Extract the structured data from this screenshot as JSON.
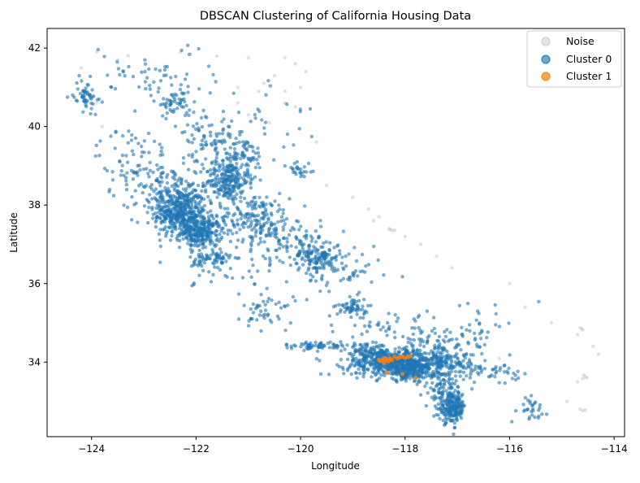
{
  "chart_data": {
    "type": "scatter",
    "title": "DBSCAN Clustering of California Housing Data",
    "xlabel": "Longitude",
    "ylabel": "Latitude",
    "xlim": [
      -124.85,
      -113.8
    ],
    "ylim": [
      32.1,
      42.5
    ],
    "xticks": [
      -124,
      -122,
      -120,
      -118,
      -116,
      -114
    ],
    "yticks": [
      34,
      36,
      38,
      40,
      42
    ],
    "xtick_labels": [
      "−124",
      "−122",
      "−120",
      "−118",
      "−116",
      "−114"
    ],
    "ytick_labels": [
      "34",
      "36",
      "38",
      "40",
      "42"
    ],
    "grid": false,
    "legend_position": "top-right",
    "series": [
      {
        "name": "Noise",
        "color": "#c8c8c8",
        "points": [
          [
            -122.3,
            41.9
          ],
          [
            -122.1,
            41.85
          ],
          [
            -121.6,
            41.8
          ],
          [
            -121.0,
            41.75
          ],
          [
            -120.3,
            41.75
          ],
          [
            -120.1,
            41.6
          ],
          [
            -119.9,
            41.4
          ],
          [
            -120.5,
            41.3
          ],
          [
            -120.7,
            41.1
          ],
          [
            -120.3,
            40.9
          ],
          [
            -120.1,
            40.5
          ],
          [
            -121.2,
            41.0
          ],
          [
            -123.3,
            41.8
          ],
          [
            -123.5,
            41.7
          ],
          [
            -123.9,
            41.9
          ],
          [
            -123.8,
            40.0
          ],
          [
            -120.6,
            40.1
          ],
          [
            -120.3,
            40.6
          ],
          [
            -121.2,
            40.6
          ],
          [
            -120.8,
            40.9
          ],
          [
            -120.0,
            41.0
          ],
          [
            -119.5,
            38.5
          ],
          [
            -119.0,
            38.2
          ],
          [
            -118.7,
            37.9
          ],
          [
            -118.5,
            37.7
          ],
          [
            -118.3,
            37.4
          ],
          [
            -118.25,
            37.35
          ],
          [
            -118.2,
            37.36
          ],
          [
            -118.3,
            37.38
          ],
          [
            -118.0,
            37.2
          ],
          [
            -117.7,
            37.0
          ],
          [
            -117.4,
            36.7
          ],
          [
            -117.1,
            36.4
          ],
          [
            -116.0,
            36.0
          ],
          [
            -115.7,
            35.4
          ],
          [
            -115.2,
            35.0
          ],
          [
            -114.65,
            34.87
          ],
          [
            -114.6,
            34.82
          ],
          [
            -114.62,
            34.85
          ],
          [
            -114.7,
            34.7
          ],
          [
            -114.55,
            33.62
          ],
          [
            -114.6,
            33.58
          ],
          [
            -114.52,
            33.6
          ],
          [
            -114.58,
            33.67
          ],
          [
            -114.7,
            33.5
          ],
          [
            -114.4,
            34.4
          ],
          [
            -114.3,
            34.2
          ],
          [
            -114.6,
            32.76
          ],
          [
            -114.65,
            32.8
          ],
          [
            -114.55,
            32.78
          ],
          [
            -114.9,
            33.0
          ],
          [
            -116.2,
            34.1
          ],
          [
            -121.0,
            40.3
          ],
          [
            -119.7,
            39.6
          ],
          [
            -123.9,
            40.6
          ],
          [
            -124.2,
            41.5
          ],
          [
            -118.6,
            37.6
          ]
        ]
      },
      {
        "name": "Cluster 0",
        "color": "#1f77b4",
        "points": []
      },
      {
        "name": "Cluster 1",
        "color": "#ff7f0e",
        "points": [
          [
            -118.4,
            34.05
          ],
          [
            -118.35,
            34.07
          ],
          [
            -118.3,
            34.06
          ],
          [
            -118.28,
            34.09
          ],
          [
            -118.45,
            34.04
          ],
          [
            -118.38,
            34.1
          ],
          [
            -118.32,
            34.02
          ],
          [
            -118.42,
            34.08
          ],
          [
            -118.25,
            34.05
          ],
          [
            -118.5,
            34.06
          ],
          [
            -118.1,
            34.12
          ],
          [
            -118.05,
            34.14
          ],
          [
            -117.95,
            34.13
          ],
          [
            -118.0,
            34.11
          ],
          [
            -118.15,
            34.1
          ],
          [
            -118.35,
            33.73
          ],
          [
            -118.05,
            33.7
          ],
          [
            -117.8,
            33.6
          ],
          [
            -118.4,
            33.98
          ],
          [
            -118.2,
            34.14
          ],
          [
            -117.9,
            34.15
          ],
          [
            -118.48,
            34.03
          ],
          [
            -118.36,
            34.04
          ]
        ]
      }
    ],
    "cluster0_regions": [
      {
        "lon": -122.3,
        "lat": 37.8,
        "sx": 0.25,
        "sy": 0.3,
        "n": 380
      },
      {
        "lon": -121.9,
        "lat": 37.3,
        "sx": 0.2,
        "sy": 0.2,
        "n": 240
      },
      {
        "lon": -122.5,
        "lat": 38.3,
        "sx": 0.35,
        "sy": 0.35,
        "n": 140
      },
      {
        "lon": -121.4,
        "lat": 38.6,
        "sx": 0.2,
        "sy": 0.25,
        "n": 200
      },
      {
        "lon": -121.2,
        "lat": 39.2,
        "sx": 0.3,
        "sy": 0.3,
        "n": 110
      },
      {
        "lon": -120.9,
        "lat": 37.7,
        "sx": 0.35,
        "sy": 0.3,
        "n": 160
      },
      {
        "lon": -120.3,
        "lat": 37.2,
        "sx": 0.35,
        "sy": 0.3,
        "n": 90
      },
      {
        "lon": -119.7,
        "lat": 36.7,
        "sx": 0.25,
        "sy": 0.2,
        "n": 150
      },
      {
        "lon": -119.0,
        "lat": 35.4,
        "sx": 0.15,
        "sy": 0.12,
        "n": 60
      },
      {
        "lon": -119.2,
        "lat": 36.2,
        "sx": 0.4,
        "sy": 0.3,
        "n": 50
      },
      {
        "lon": -122.4,
        "lat": 40.6,
        "sx": 0.15,
        "sy": 0.15,
        "n": 45
      },
      {
        "lon": -121.8,
        "lat": 39.8,
        "sx": 0.25,
        "sy": 0.35,
        "n": 70
      },
      {
        "lon": -124.1,
        "lat": 40.8,
        "sx": 0.12,
        "sy": 0.2,
        "n": 55
      },
      {
        "lon": -123.2,
        "lat": 39.1,
        "sx": 0.35,
        "sy": 0.45,
        "n": 80
      },
      {
        "lon": -120.0,
        "lat": 38.9,
        "sx": 0.15,
        "sy": 0.15,
        "n": 25
      },
      {
        "lon": -121.7,
        "lat": 36.6,
        "sx": 0.2,
        "sy": 0.15,
        "n": 70
      },
      {
        "lon": -120.6,
        "lat": 35.3,
        "sx": 0.25,
        "sy": 0.25,
        "n": 45
      },
      {
        "lon": -119.7,
        "lat": 34.42,
        "sx": 0.3,
        "sy": 0.05,
        "n": 60
      },
      {
        "lon": -118.25,
        "lat": 34.0,
        "sx": 0.45,
        "sy": 0.18,
        "n": 500
      },
      {
        "lon": -117.9,
        "lat": 33.8,
        "sx": 0.25,
        "sy": 0.15,
        "n": 200
      },
      {
        "lon": -117.3,
        "lat": 34.0,
        "sx": 0.35,
        "sy": 0.2,
        "n": 180
      },
      {
        "lon": -118.7,
        "lat": 34.25,
        "sx": 0.2,
        "sy": 0.1,
        "n": 70
      },
      {
        "lon": -117.1,
        "lat": 32.85,
        "sx": 0.13,
        "sy": 0.2,
        "n": 220
      },
      {
        "lon": -117.3,
        "lat": 33.35,
        "sx": 0.12,
        "sy": 0.2,
        "n": 55
      },
      {
        "lon": -116.4,
        "lat": 33.75,
        "sx": 0.3,
        "sy": 0.12,
        "n": 50
      },
      {
        "lon": -117.3,
        "lat": 34.6,
        "sx": 0.5,
        "sy": 0.2,
        "n": 60
      },
      {
        "lon": -118.4,
        "lat": 34.85,
        "sx": 0.4,
        "sy": 0.25,
        "n": 40
      },
      {
        "lon": -115.6,
        "lat": 32.85,
        "sx": 0.15,
        "sy": 0.15,
        "n": 30
      },
      {
        "lon": -122.8,
        "lat": 41.3,
        "sx": 0.6,
        "sy": 0.4,
        "n": 60
      },
      {
        "lon": -121.0,
        "lat": 36.3,
        "sx": 0.5,
        "sy": 0.4,
        "n": 30
      },
      {
        "lon": -116.5,
        "lat": 34.9,
        "sx": 0.5,
        "sy": 0.4,
        "n": 20
      },
      {
        "lon": -120.6,
        "lat": 40.2,
        "sx": 0.4,
        "sy": 0.4,
        "n": 25
      }
    ]
  },
  "legend": {
    "items": [
      {
        "label": "Noise",
        "color": "#c8c8c8"
      },
      {
        "label": "Cluster 0",
        "color": "#1f77b4"
      },
      {
        "label": "Cluster 1",
        "color": "#ff7f0e"
      }
    ]
  }
}
